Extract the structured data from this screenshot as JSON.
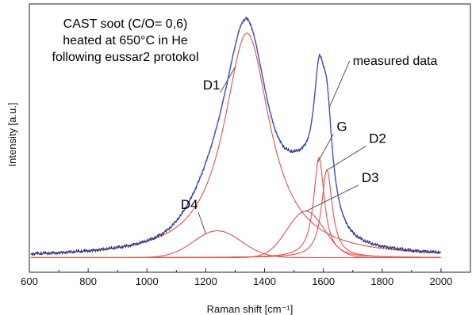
{
  "chart_data": {
    "type": "line",
    "title_lines": [
      "CAST soot (C/O= 0,6)",
      "heated at 650°C in He",
      "following eussar2 protokol"
    ],
    "xlabel": "Raman shift [cm⁻¹]",
    "ylabel": "Intensity [a.u.]",
    "xlim": [
      600,
      2100
    ],
    "ylim": [
      -0.05,
      1.05
    ],
    "x_ticks": [
      600,
      800,
      1000,
      1200,
      1400,
      1600,
      1800,
      2000
    ],
    "grid": false,
    "legend": "none",
    "annotations": [
      {
        "text": "measured data",
        "series": "measured",
        "point_x": 1620,
        "label_x": 1700,
        "label_y": 0.8
      },
      {
        "text": "D1",
        "series": "D1",
        "point_x": 1300,
        "label_x": 1190,
        "label_y": 0.7
      },
      {
        "text": "G",
        "series": "G",
        "point_x": 1580,
        "label_x": 1645,
        "label_y": 0.53
      },
      {
        "text": "D2",
        "series": "D2",
        "point_x": 1610,
        "label_x": 1755,
        "label_y": 0.48
      },
      {
        "text": "D3",
        "series": "D3",
        "point_x": 1540,
        "label_x": 1730,
        "label_y": 0.32
      },
      {
        "text": "D4",
        "series": "D4",
        "point_x": 1200,
        "label_x": 1115,
        "label_y": 0.21
      }
    ],
    "colors": {
      "measured": "#1a1a1a",
      "fit": "#3b4fd8",
      "components": "#e8504e"
    },
    "series": [
      {
        "key": "D1",
        "center": 1340,
        "hwhm": 95,
        "amplitude": 0.92,
        "shape": "lorentzian"
      },
      {
        "key": "G",
        "center": 1585,
        "hwhm": 22,
        "amplitude": 0.41,
        "shape": "lorentzian"
      },
      {
        "key": "D2",
        "center": 1612,
        "hwhm": 22,
        "amplitude": 0.36,
        "shape": "lorentzian"
      },
      {
        "key": "D3",
        "center": 1540,
        "hwhm": 75,
        "amplitude": 0.19,
        "shape": "gaussian"
      },
      {
        "key": "D4",
        "center": 1240,
        "hwhm": 95,
        "amplitude": 0.11,
        "shape": "gaussian"
      }
    ],
    "baseline": 0.01
  }
}
